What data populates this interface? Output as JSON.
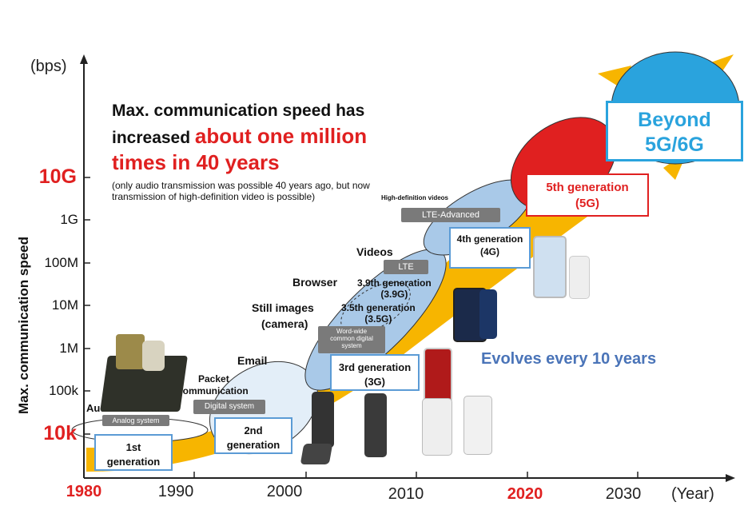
{
  "axes": {
    "y_unit": "(bps)",
    "y_title": "Max. communication speed",
    "x_unit": "(Year)",
    "y_ticks": [
      "10k",
      "100k",
      "1M",
      "10M",
      "100M",
      "1G",
      "10G"
    ],
    "x_ticks": [
      "1980",
      "1990",
      "2000",
      "2010",
      "2020",
      "2030"
    ]
  },
  "headline": {
    "line1": "Max. communication speed has",
    "line2_a": "increased ",
    "line2_b": "about one million",
    "line3": "times in 40 years",
    "note1": "(only audio transmission was possible 40 years ago, but now",
    "note2": "transmission of high-definition video is possible)"
  },
  "use_cases": {
    "audio": "Audio",
    "packet_1": "Packet",
    "packet_2": "communication",
    "email": "Email",
    "still_1": "Still images",
    "still_2": "(camera)",
    "browser": "Browser",
    "videos": "Videos",
    "hd_videos": "High-definition videos"
  },
  "tags": {
    "analog": "Analog system",
    "digital": "Digital system",
    "worldwide_1": "Word-wide",
    "worldwide_2": "common digital",
    "worldwide_3": "system",
    "lte": "LTE",
    "lte_adv": "LTE-Advanced"
  },
  "generations": {
    "g1_1": "1st",
    "g1_2": "generation",
    "g2_1": "2nd",
    "g2_2": "generation",
    "g3_1": "3rd generation",
    "g3_2": "(3G)",
    "g35_1": "3.5th generation",
    "g35_2": "(3.5G)",
    "g39_1": "3.9th generation",
    "g39_2": "(3.9G)",
    "g4_1": "4th generation",
    "g4_2": "(4G)",
    "g5_1": "5th generation",
    "g5_2": "(5G)",
    "beyond_1": "Beyond",
    "beyond_2": "5G/6G"
  },
  "evolves": "Evolves every 10 years",
  "colors": {
    "accent_red": "#e02020",
    "box_blue": "#5b9bd5",
    "evolve_blue": "#4a74b8",
    "beyond_blue": "#2aa3dd",
    "yellow": "#f7b500",
    "tag_gray": "#7a7a7a"
  }
}
